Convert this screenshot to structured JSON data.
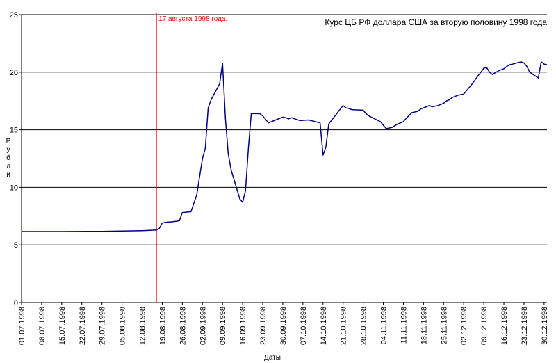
{
  "chart_data": {
    "type": "line",
    "title": "Курс ЦБ РФ доллара США за вторую половину 1998 года",
    "xlabel": "Даты",
    "ylabel": "Рубли",
    "ylim": [
      0,
      25
    ],
    "yticks": [
      0,
      5,
      10,
      15,
      20,
      25
    ],
    "xlim": [
      "01.07.1998",
      "31.12.1998"
    ],
    "xtick_labels": [
      "01.07.1998",
      "08.07.1998",
      "15.07.1998",
      "22.07.1998",
      "29.07.1998",
      "05.08.1998",
      "12.08.1998",
      "19.08.1998",
      "26.08.1998",
      "02.09.1998",
      "09.09.1998",
      "16.09.1998",
      "23.09.1998",
      "30.09.1998",
      "07.10.1998",
      "14.10.1998",
      "21.10.1998",
      "28.10.1998",
      "04.11.1998",
      "11.11.1998",
      "18.11.1998",
      "25.11.1998",
      "02.12.1998",
      "09.12.1998",
      "16.12.1998",
      "23.12.1998",
      "30.12.1998"
    ],
    "grid": "horizontal",
    "annotation": {
      "x": "17.08.1998",
      "text": "17 августа 1998 года.",
      "color": "#ff0000"
    },
    "line_color": "#000080",
    "series": [
      {
        "x": [
          "01.07.1998",
          "15.07.1998",
          "29.07.1998",
          "05.08.1998",
          "12.08.1998",
          "16.08.1998",
          "17.08.1998",
          "18.08.1998",
          "19.08.1998",
          "20.08.1998",
          "21.08.1998",
          "22.08.1998",
          "24.08.1998",
          "25.08.1998",
          "26.08.1998",
          "27.08.1998",
          "28.08.1998",
          "29.08.1998",
          "31.08.1998",
          "01.09.1998",
          "02.09.1998",
          "03.09.1998",
          "04.09.1998",
          "05.09.1998",
          "08.09.1998",
          "09.09.1998",
          "10.09.1998",
          "11.09.1998",
          "12.09.1998",
          "15.09.1998",
          "16.09.1998",
          "17.09.1998",
          "18.09.1998",
          "19.09.1998",
          "22.09.1998",
          "23.09.1998",
          "24.09.1998",
          "25.09.1998",
          "29.09.1998",
          "30.09.1998",
          "01.10.1998",
          "02.10.1998",
          "03.10.1998",
          "06.10.1998",
          "09.10.1998",
          "13.10.1998",
          "14.10.1998",
          "15.10.1998",
          "16.10.1998",
          "20.10.1998",
          "21.10.1998",
          "22.10.1998",
          "23.10.1998",
          "24.10.1998",
          "28.10.1998",
          "29.10.1998",
          "30.10.1998",
          "03.11.1998",
          "04.11.1998",
          "05.11.1998",
          "07.11.1998",
          "09.11.1998",
          "10.11.1998",
          "11.11.1998",
          "12.11.1998",
          "14.11.1998",
          "16.11.1998",
          "17.11.1998",
          "18.11.1998",
          "19.11.1998",
          "20.11.1998",
          "21.11.1998",
          "23.11.1998",
          "24.11.1998",
          "25.11.1998",
          "26.11.1998",
          "27.11.1998",
          "28.11.1998",
          "30.11.1998",
          "02.12.1998",
          "03.12.1998",
          "04.12.1998",
          "05.12.1998",
          "07.12.1998",
          "08.12.1998",
          "09.12.1998",
          "10.12.1998",
          "11.12.1998",
          "12.12.1998",
          "14.12.1998",
          "16.12.1998",
          "17.12.1998",
          "18.12.1998",
          "19.12.1998",
          "22.12.1998",
          "23.12.1998",
          "24.12.1998",
          "25.12.1998",
          "28.12.1998",
          "29.12.1998",
          "30.12.1998",
          "31.12.1998"
        ],
        "y": [
          6.16,
          6.16,
          6.18,
          6.2,
          6.24,
          6.28,
          6.3,
          6.43,
          6.9,
          6.95,
          6.98,
          7.0,
          7.06,
          7.1,
          7.8,
          7.83,
          7.86,
          7.88,
          9.33,
          10.9,
          12.5,
          13.4,
          16.9,
          17.6,
          19.0,
          20.8,
          16.0,
          12.9,
          11.5,
          9.0,
          8.7,
          9.7,
          13.4,
          16.4,
          16.4,
          16.2,
          15.9,
          15.6,
          16.0,
          16.1,
          16.05,
          15.95,
          16.05,
          15.8,
          15.85,
          15.6,
          12.8,
          13.5,
          15.5,
          16.8,
          17.1,
          16.9,
          16.85,
          16.75,
          16.7,
          16.4,
          16.2,
          15.7,
          15.4,
          15.1,
          15.2,
          15.5,
          15.6,
          15.7,
          16.0,
          16.5,
          16.6,
          16.8,
          16.9,
          17.0,
          17.1,
          17.0,
          17.1,
          17.2,
          17.3,
          17.5,
          17.6,
          17.8,
          18.0,
          18.1,
          18.4,
          18.7,
          19.0,
          19.7,
          20.0,
          20.35,
          20.4,
          20.0,
          19.8,
          20.1,
          20.3,
          20.5,
          20.65,
          20.7,
          20.9,
          20.8,
          20.5,
          20.0,
          19.5,
          20.9,
          20.7,
          20.65
        ]
      }
    ]
  }
}
